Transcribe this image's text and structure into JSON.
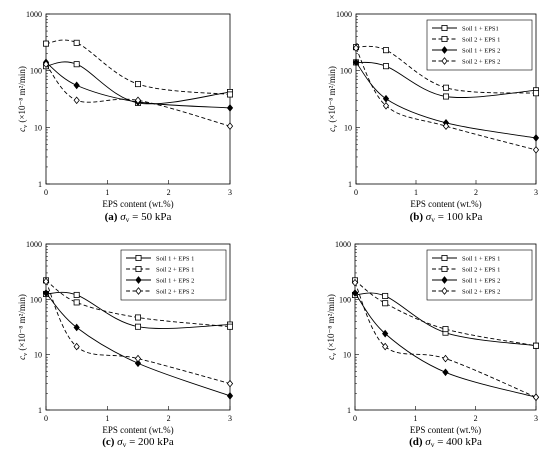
{
  "chart_data": [
    {
      "type": "line",
      "caption": {
        "letter": "(a)",
        "symbol": "σ",
        "sub": "v",
        "value": "= 50 kPa"
      },
      "xlabel": "EPS content (wt.%)",
      "ylabel": {
        "c": "c",
        "sub": "v",
        "unit": " (×10⁻⁸ m²/min)"
      },
      "xlim": [
        0,
        3
      ],
      "xticks": [
        "0",
        "1",
        "2",
        "3"
      ],
      "ylim": [
        1,
        1000
      ],
      "yscale": "log",
      "yticks": [
        "1",
        "10",
        "100",
        "1000"
      ],
      "legend": null,
      "x": [
        0,
        0.5,
        1.5,
        3
      ],
      "series": [
        {
          "name": "Soil 1 + EPS 1",
          "values": [
            120,
            130,
            27,
            42
          ],
          "dash": "solid",
          "marker": "square-open"
        },
        {
          "name": "Soil 2 + EPS 1",
          "values": [
            300,
            310,
            58,
            38
          ],
          "dash": "dashed",
          "marker": "square-open"
        },
        {
          "name": "Soil 1 + EPS 2",
          "values": [
            140,
            55,
            28,
            22
          ],
          "dash": "solid",
          "marker": "diamond-filled"
        },
        {
          "name": "Soil 2 + EPS 2",
          "values": [
            130,
            30,
            30,
            10.5
          ],
          "dash": "dashed",
          "marker": "diamond-open"
        }
      ]
    },
    {
      "type": "line",
      "caption": {
        "letter": "(b)",
        "symbol": "σ",
        "sub": "v",
        "value": "= 100 kPa"
      },
      "xlabel": "EPS content (wt.%)",
      "ylabel": {
        "c": "c",
        "sub": "v",
        "unit": " (×10⁻⁸ m²/min)"
      },
      "xlim": [
        0,
        3
      ],
      "xticks": [
        "0",
        "1",
        "2",
        "3"
      ],
      "ylim": [
        1,
        1000
      ],
      "yscale": "log",
      "yticks": [
        "1",
        "10",
        "100",
        "1000"
      ],
      "legend": "top-right",
      "x": [
        0,
        0.5,
        1.5,
        3
      ],
      "series": [
        {
          "name": "Soil 1 + EPS1",
          "values": [
            140,
            120,
            35,
            45
          ],
          "dash": "solid",
          "marker": "square-open"
        },
        {
          "name": "Soil 2 + EPS 1",
          "values": [
            260,
            230,
            50,
            40
          ],
          "dash": "dashed",
          "marker": "square-open"
        },
        {
          "name": "Soil 1 + EPS 2",
          "values": [
            140,
            32,
            12,
            6.5
          ],
          "dash": "solid",
          "marker": "diamond-filled"
        },
        {
          "name": "Soil 2 + EPS 2",
          "values": [
            250,
            24,
            10.5,
            4
          ],
          "dash": "dashed",
          "marker": "diamond-open"
        }
      ]
    },
    {
      "type": "line",
      "caption": {
        "letter": "(c)",
        "symbol": "σ",
        "sub": "v",
        "value": "= 200 kPa"
      },
      "xlabel": "EPS content (wt.%)",
      "ylabel": {
        "c": "c",
        "sub": "v",
        "unit": " (×10⁻⁸ m²/min)"
      },
      "xlim": [
        0,
        3
      ],
      "xticks": [
        "0",
        "1",
        "2",
        "3"
      ],
      "ylim": [
        1,
        1000
      ],
      "yscale": "log",
      "yticks": [
        "1",
        "10",
        "100",
        "1000"
      ],
      "legend": "top-right",
      "x": [
        0,
        0.5,
        1.5,
        3
      ],
      "series": [
        {
          "name": "Soil 1 + EPS 1",
          "values": [
            125,
            120,
            32,
            35
          ],
          "dash": "solid",
          "marker": "square-open"
        },
        {
          "name": "Soil 2 + EPS 1",
          "values": [
            220,
            88,
            47,
            32
          ],
          "dash": "dashed",
          "marker": "square-open"
        },
        {
          "name": "Soil 1 + EPS 2",
          "values": [
            130,
            31,
            7,
            1.8
          ],
          "dash": "solid",
          "marker": "diamond-filled"
        },
        {
          "name": "Soil 2 + EPS 2",
          "values": [
            210,
            14,
            8.5,
            3
          ],
          "dash": "dashed",
          "marker": "diamond-open"
        }
      ]
    },
    {
      "type": "line",
      "caption": {
        "letter": "(d)",
        "symbol": "σ",
        "sub": "v",
        "value": "= 400 kPa"
      },
      "xlabel": "EPS content (wt.%)",
      "ylabel": {
        "c": "c",
        "sub": "v",
        "unit": " (×10⁻⁸ m²/min)"
      },
      "xlim": [
        0,
        3
      ],
      "xticks": [
        "0",
        "1",
        "2",
        "3"
      ],
      "ylim": [
        1,
        1000
      ],
      "yscale": "log",
      "yticks": [
        "1",
        "10",
        "100",
        "1000"
      ],
      "legend": "top-right",
      "x": [
        0,
        0.5,
        1.5,
        3
      ],
      "series": [
        {
          "name": "Soil 1 + EPS 1",
          "values": [
            120,
            115,
            25,
            14.5
          ],
          "dash": "solid",
          "marker": "square-open"
        },
        {
          "name": "Soil 2 + EPS 1",
          "values": [
            220,
            85,
            29,
            14.5
          ],
          "dash": "dashed",
          "marker": "square-open"
        },
        {
          "name": "Soil 1 + EPS 2",
          "values": [
            130,
            24,
            4.8,
            1.7
          ],
          "dash": "solid",
          "marker": "diamond-filled"
        },
        {
          "name": "Soil 2 + EPS 2",
          "values": [
            200,
            14,
            8.5,
            1.7
          ],
          "dash": "dashed",
          "marker": "diamond-open"
        }
      ]
    }
  ]
}
